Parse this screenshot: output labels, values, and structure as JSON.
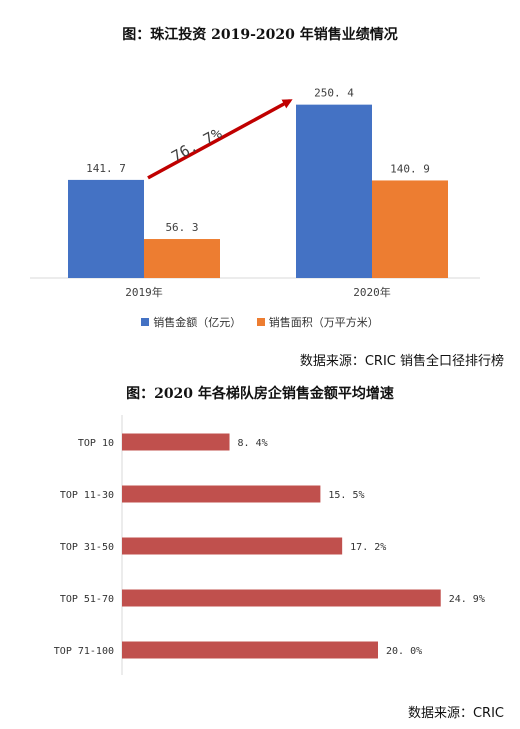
{
  "chart_data": [
    {
      "type": "bar",
      "title": "图：珠江投资 2019-2020 年销售业绩情况",
      "categories": [
        "2019年",
        "2020年"
      ],
      "series": [
        {
          "name": "销售金额（亿元）",
          "values": [
            141.7,
            250.4
          ],
          "value_labels": [
            "141. 7",
            "250. 4"
          ],
          "color": "#4472C4"
        },
        {
          "name": "销售面积（万平方米）",
          "values": [
            56.3,
            140.9
          ],
          "value_labels": [
            "56. 3",
            "140. 9"
          ],
          "color": "#ED7D31"
        }
      ],
      "ylim": [
        0,
        260
      ],
      "grid": false,
      "legend": "bottom",
      "annotation": {
        "text": "76. 7%",
        "color": "#C00000",
        "type": "growth-arrow"
      },
      "source": "数据来源：CRIC 销售全口径排行榜"
    },
    {
      "type": "bar",
      "orientation": "horizontal",
      "title": "图：2020 年各梯队房企销售金额平均增速",
      "categories": [
        "TOP 10",
        "TOP 11-30",
        "TOP 31-50",
        "TOP 51-70",
        "TOP 71-100"
      ],
      "values": [
        8.4,
        15.5,
        17.2,
        24.9,
        20.0
      ],
      "value_labels": [
        "8. 4%",
        "15. 5%",
        "17. 2%",
        "24. 9%",
        "20. 0%"
      ],
      "color": "#C0504D",
      "xlim": [
        0,
        25
      ],
      "grid": false,
      "source": "数据来源：CRIC"
    }
  ]
}
